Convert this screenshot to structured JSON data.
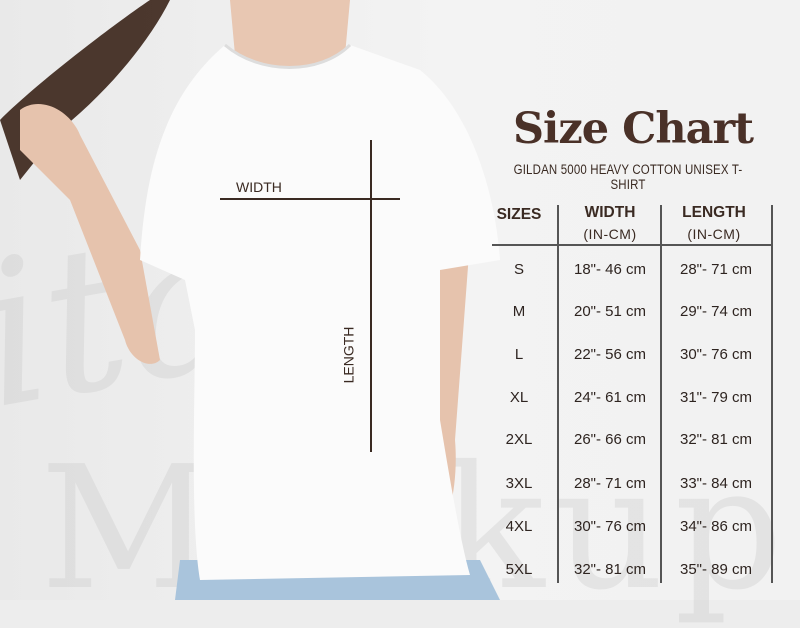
{
  "title": "Size Chart",
  "subtitle": "GILDAN 5000 HEAVY COTTON UNISEX T-SHIRT",
  "watermark": "Pita Mockup",
  "measure_labels": {
    "width": "WIDTH",
    "length": "LENGTH"
  },
  "table": {
    "headers": [
      {
        "label": "SIZES",
        "unit": ""
      },
      {
        "label": "WIDTH",
        "unit": "(IN-CM)"
      },
      {
        "label": "LENGTH",
        "unit": "(IN-CM)"
      }
    ],
    "rows": [
      {
        "size": "S",
        "width": "18\"- 46 cm",
        "length": "28\"- 71 cm"
      },
      {
        "size": "M",
        "width": "20\"- 51 cm",
        "length": "29\"- 74 cm"
      },
      {
        "size": "L",
        "width": "22\"- 56 cm",
        "length": "30\"- 76 cm"
      },
      {
        "size": "XL",
        "width": "24\"- 61 cm",
        "length": "31\"- 79 cm"
      },
      {
        "size": "2XL",
        "width": "26\"- 66 cm",
        "length": "32\"- 81 cm"
      },
      {
        "size": "3XL",
        "width": "28\"- 71 cm",
        "length": "33\"- 84 cm"
      },
      {
        "size": "4XL",
        "width": "30\"- 76 cm",
        "length": "34\"- 86 cm"
      },
      {
        "size": "5XL",
        "width": "32\"- 81 cm",
        "length": "35\"- 89 cm"
      }
    ]
  },
  "colors": {
    "title": "#4a3128",
    "text": "#3a2a22",
    "background": "#ededed"
  }
}
